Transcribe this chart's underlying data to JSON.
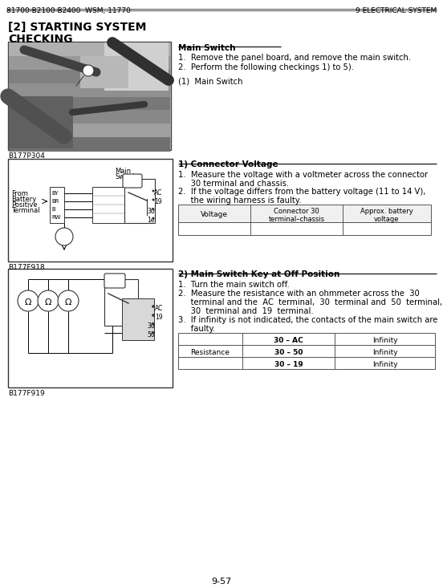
{
  "header_left": "81700-B2100-B2400  WSM, 11770",
  "header_right": "9 ELECTRICAL SYSTEM",
  "section_title": "[2] STARTING SYSTEM",
  "subsection": "CHECKING",
  "photo_label": "B177P304",
  "diagram1_label": "B177F918",
  "diagram2_label": "B177F919",
  "main_switch_title": "Main Switch",
  "ms_step1": "1.  Remove the panel board, and remove the main switch.",
  "ms_step2": "2.  Perform the following checkings 1) to 5).",
  "ms_note": "(1)  Main Switch",
  "conn_title": "1) Connector Voltage",
  "conn_step1": "1.  Measure the voltage with a voltmeter across the connector",
  "conn_step1b": "     30 terminal and chassis.",
  "conn_step2": "2.  If the voltage differs from the battery voltage (11 to 14 V),",
  "conn_step2b": "     the wiring harness is faulty.",
  "vtable_h1": "Voltage",
  "vtable_h2": "Connector 30\nterminal–chassis",
  "vtable_h3": "Approx. battery\nvoltage",
  "off_title": "2) Main Switch Key at Off Position",
  "off_step1": "1.  Turn the main switch off.",
  "off_step2a": "2.  Measure the resistance with an ohmmeter across the  30",
  "off_step2b": "     terminal and the  AC  terminal,  30  terminal and  50  terminal,",
  "off_step2c": "     30  terminal and  19  terminal.",
  "off_step3a": "3.  If infinity is not indicated, the contacts of the main switch are",
  "off_step3b": "     faulty.",
  "rtable_label": "Resistance",
  "rtable_r1a": "30 – AC",
  "rtable_r1b": "Infinity",
  "rtable_r2a": "30 – 50",
  "rtable_r2b": "Infinity",
  "rtable_r3a": "30 – 19",
  "rtable_r3b": "Infinity",
  "page_num": "9-57",
  "bg": "#ffffff"
}
